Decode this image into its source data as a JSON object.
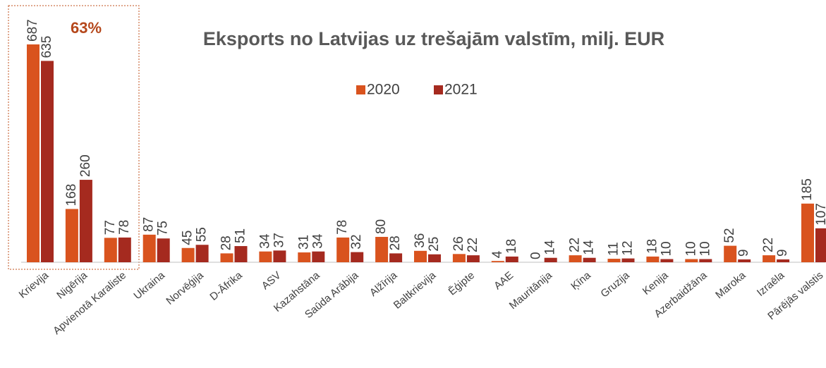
{
  "chart_data": {
    "type": "bar",
    "title": "Eksports no Latvijas uz trešajām valstīm, milj. EUR",
    "annotation": "63%",
    "categories": [
      "Krievija",
      "Nigērija",
      "Apvienotā Karaliste",
      "Ukraina",
      "Norvēģija",
      "D-Āfrika",
      "ASV",
      "Kazahstāna",
      "Saūda Arābija",
      "Alžīrija",
      "Baltkrievija",
      "Ēģipte",
      "AAE",
      "Mauritānija",
      "Ķīna",
      "Gruzija",
      "Kenija",
      "Azerbaidžāna",
      "Maroka",
      "Izraēla",
      "Pārējās valstis"
    ],
    "series": [
      {
        "name": "2020",
        "color": "#d9531e",
        "values": [
          687,
          168,
          77,
          87,
          45,
          28,
          34,
          31,
          78,
          80,
          36,
          26,
          4,
          0,
          22,
          11,
          18,
          10,
          52,
          22,
          185
        ]
      },
      {
        "name": "2021",
        "color": "#a52a1f",
        "values": [
          635,
          260,
          78,
          75,
          55,
          51,
          37,
          34,
          32,
          28,
          25,
          22,
          18,
          14,
          14,
          12,
          10,
          10,
          9,
          9,
          107
        ]
      }
    ]
  }
}
